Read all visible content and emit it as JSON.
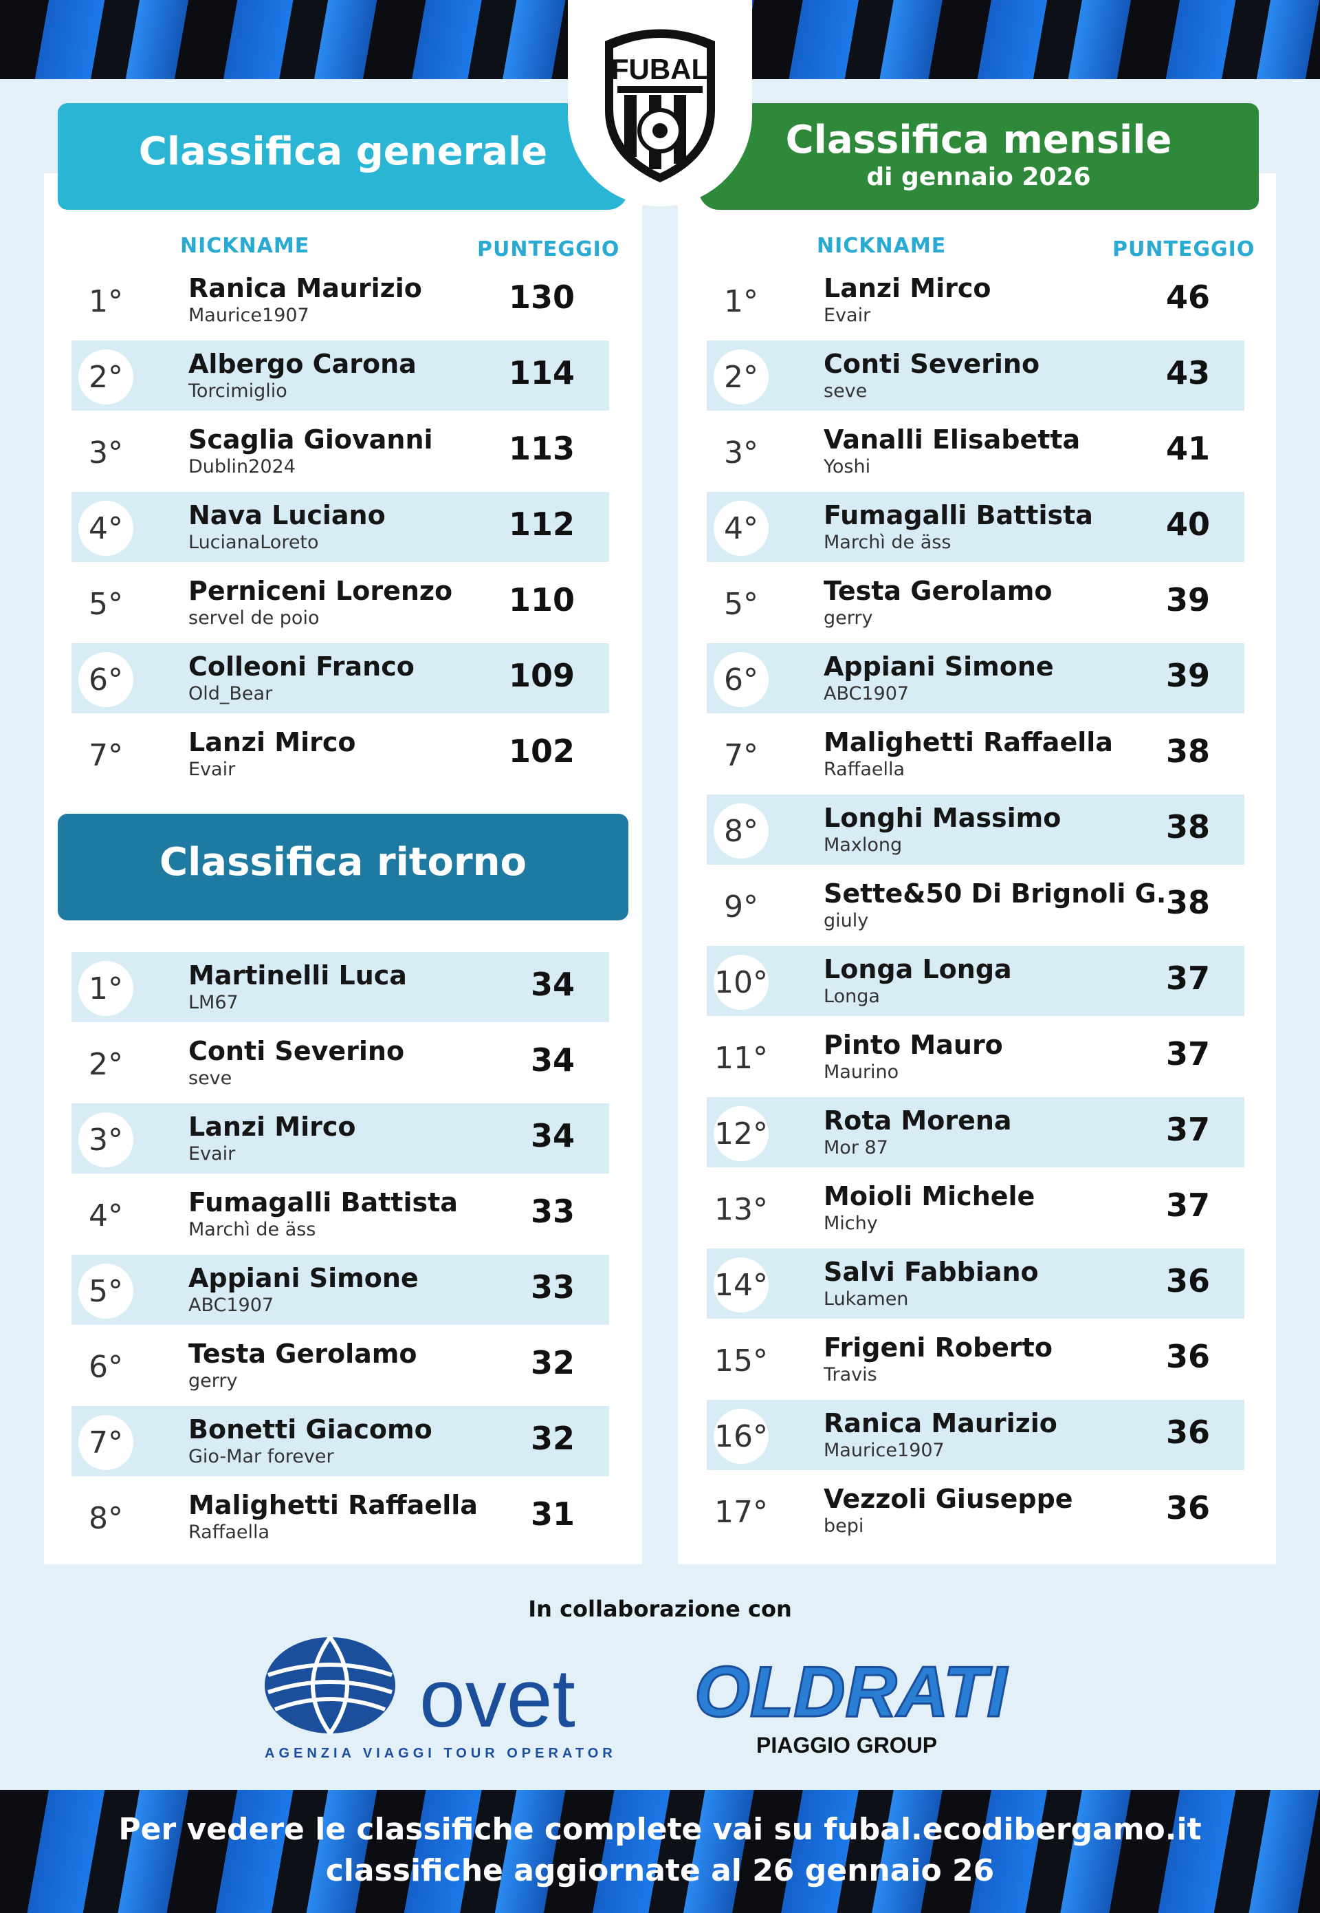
{
  "logo_text": "FUBAL",
  "generale": {
    "title": "Classifica generale",
    "col_nickname": "NICKNAME",
    "col_punteggio": "PUNTEGGIO",
    "rows": [
      {
        "rank": "1°",
        "name": "Ranica Maurizio",
        "nick": "Maurice1907",
        "score": "130"
      },
      {
        "rank": "2°",
        "name": "Albergo Carona",
        "nick": "Torcimiglio",
        "score": "114"
      },
      {
        "rank": "3°",
        "name": "Scaglia Giovanni",
        "nick": "Dublin2024",
        "score": "113"
      },
      {
        "rank": "4°",
        "name": "Nava Luciano",
        "nick": "LucianaLoreto",
        "score": "112"
      },
      {
        "rank": "5°",
        "name": "Perniceni Lorenzo",
        "nick": "servel de poio",
        "score": "110"
      },
      {
        "rank": "6°",
        "name": "Colleoni Franco",
        "nick": "Old_Bear",
        "score": "109"
      },
      {
        "rank": "7°",
        "name": "Lanzi Mirco",
        "nick": "Evair",
        "score": "102"
      }
    ]
  },
  "ritorno": {
    "title": "Classifica ritorno",
    "rows": [
      {
        "rank": "1°",
        "name": "Martinelli Luca",
        "nick": "LM67",
        "score": "34"
      },
      {
        "rank": "2°",
        "name": "Conti Severino",
        "nick": "seve",
        "score": "34"
      },
      {
        "rank": "3°",
        "name": "Lanzi Mirco",
        "nick": "Evair",
        "score": "34"
      },
      {
        "rank": "4°",
        "name": "Fumagalli Battista",
        "nick": "Marchì de äss",
        "score": "33"
      },
      {
        "rank": "5°",
        "name": "Appiani Simone",
        "nick": "ABC1907",
        "score": "33"
      },
      {
        "rank": "6°",
        "name": "Testa Gerolamo",
        "nick": "gerry",
        "score": "32"
      },
      {
        "rank": "7°",
        "name": "Bonetti Giacomo",
        "nick": "Gio-Mar forever",
        "score": "32"
      },
      {
        "rank": "8°",
        "name": "Malighetti Raffaella",
        "nick": "Raffaella",
        "score": "31"
      }
    ]
  },
  "mensile": {
    "title": "Classifica mensile",
    "subtitle": "di gennaio 2026",
    "col_nickname": "NICKNAME",
    "col_punteggio": "PUNTEGGIO",
    "rows": [
      {
        "rank": "1°",
        "name": "Lanzi Mirco",
        "nick": "Evair",
        "score": "46"
      },
      {
        "rank": "2°",
        "name": "Conti Severino",
        "nick": "seve",
        "score": "43"
      },
      {
        "rank": "3°",
        "name": "Vanalli Elisabetta",
        "nick": "Yoshi",
        "score": "41"
      },
      {
        "rank": "4°",
        "name": "Fumagalli Battista",
        "nick": "Marchì de äss",
        "score": "40"
      },
      {
        "rank": "5°",
        "name": "Testa Gerolamo",
        "nick": "gerry",
        "score": "39"
      },
      {
        "rank": "6°",
        "name": "Appiani Simone",
        "nick": "ABC1907",
        "score": "39"
      },
      {
        "rank": "7°",
        "name": "Malighetti Raffaella",
        "nick": "Raffaella",
        "score": "38"
      },
      {
        "rank": "8°",
        "name": "Longhi Massimo",
        "nick": "Maxlong",
        "score": "38"
      },
      {
        "rank": "9°",
        "name": "Sette&50 Di Brignoli G.",
        "nick": "giuly",
        "score": "38"
      },
      {
        "rank": "10°",
        "name": "Longa Longa",
        "nick": "Longa",
        "score": "37"
      },
      {
        "rank": "11°",
        "name": "Pinto Mauro",
        "nick": "Maurino",
        "score": "37"
      },
      {
        "rank": "12°",
        "name": "Rota Morena",
        "nick": "Mor 87",
        "score": "37"
      },
      {
        "rank": "13°",
        "name": "Moioli Michele",
        "nick": "Michy",
        "score": "37"
      },
      {
        "rank": "14°",
        "name": "Salvi Fabbiano",
        "nick": "Lukamen",
        "score": "36"
      },
      {
        "rank": "15°",
        "name": "Frigeni Roberto",
        "nick": "Travis",
        "score": "36"
      },
      {
        "rank": "16°",
        "name": "Ranica Maurizio",
        "nick": "Maurice1907",
        "score": "36"
      },
      {
        "rank": "17°",
        "name": "Vezzoli Giuseppe",
        "nick": "bepi",
        "score": "36"
      }
    ]
  },
  "collaboration": "In collaborazione con",
  "sponsors": {
    "ovet_name": "ovet",
    "ovet_tagline": "AGENZIA VIAGGI TOUR OPERATOR",
    "oldrati_name": "OLDRATI",
    "oldrati_tagline": "PIAGGIO GROUP"
  },
  "footer": {
    "line1": "Per vedere le classifiche complete vai su fubal.ecodibergamo.it",
    "line2": "classifiche aggiornate al 26 gennaio 26"
  },
  "colors": {
    "generale_header": "#2bb5d5",
    "mensile_header": "#2e8a3a",
    "ritorno_header": "#1f7aa2",
    "column_label": "#28aad2",
    "row_shade": "#d8ecf6"
  }
}
